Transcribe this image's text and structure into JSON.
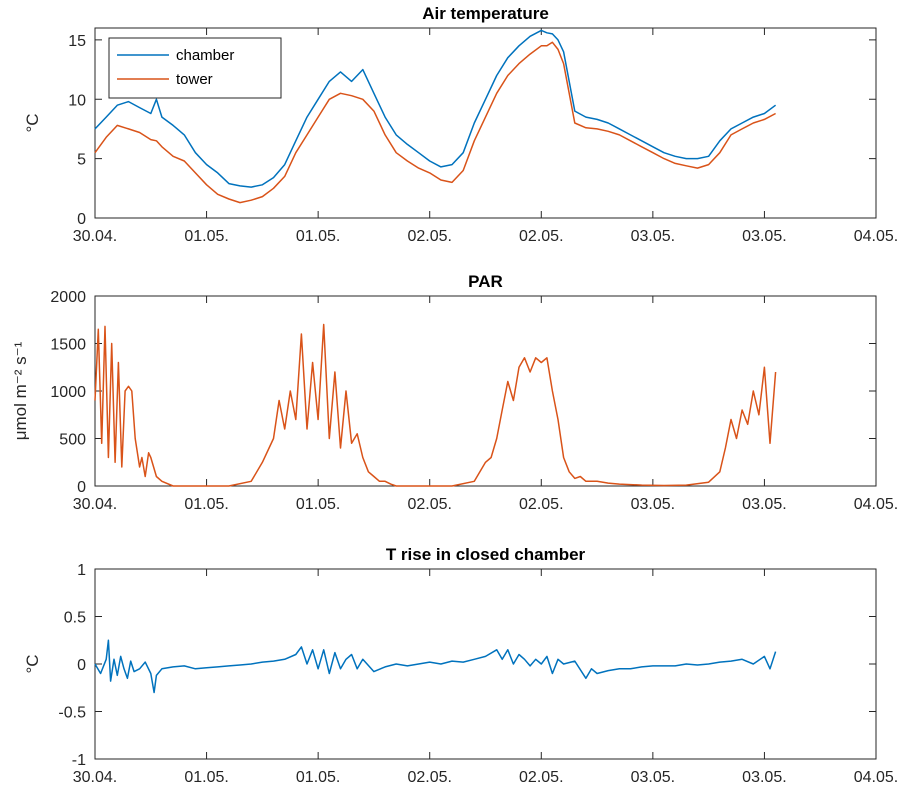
{
  "chart_data": [
    {
      "type": "line",
      "title": "Air temperature",
      "ylabel": "°C",
      "xlabel": "",
      "xlim": [
        0,
        7
      ],
      "ylim": [
        0,
        16
      ],
      "yticks": [
        0,
        5,
        10,
        15
      ],
      "x_tick_labels": [
        "30.04.",
        "01.05.",
        "01.05.",
        "02.05.",
        "02.05.",
        "03.05.",
        "03.05.",
        "04.05."
      ],
      "legend_position": "top-left",
      "grid": false,
      "series": [
        {
          "name": "chamber",
          "color": "#0072BD",
          "x": [
            0,
            0.1,
            0.2,
            0.3,
            0.4,
            0.5,
            0.55,
            0.6,
            0.7,
            0.8,
            0.9,
            1.0,
            1.1,
            1.2,
            1.3,
            1.4,
            1.5,
            1.6,
            1.7,
            1.8,
            1.9,
            2.0,
            2.1,
            2.2,
            2.3,
            2.4,
            2.5,
            2.6,
            2.7,
            2.8,
            2.9,
            3.0,
            3.1,
            3.2,
            3.3,
            3.4,
            3.5,
            3.6,
            3.7,
            3.8,
            3.9,
            4.0,
            4.05,
            4.1,
            4.15,
            4.2,
            4.3,
            4.4,
            4.5,
            4.6,
            4.7,
            4.8,
            4.9,
            5.0,
            5.1,
            5.2,
            5.3,
            5.4,
            5.5,
            5.6,
            5.7,
            5.8,
            5.9,
            6.0,
            6.1
          ],
          "values": [
            7.5,
            8.5,
            9.5,
            9.8,
            9.3,
            8.8,
            10.0,
            8.5,
            7.8,
            7.0,
            5.5,
            4.5,
            3.8,
            2.9,
            2.7,
            2.6,
            2.8,
            3.4,
            4.5,
            6.5,
            8.5,
            10.0,
            11.5,
            12.3,
            11.5,
            12.5,
            10.5,
            8.5,
            7.0,
            6.2,
            5.5,
            4.8,
            4.3,
            4.5,
            5.5,
            8.0,
            10.0,
            12.0,
            13.5,
            14.5,
            15.3,
            15.8,
            15.6,
            15.5,
            15.0,
            14.0,
            9.0,
            8.5,
            8.3,
            8.0,
            7.5,
            7.0,
            6.5,
            6.0,
            5.5,
            5.2,
            5.0,
            5.0,
            5.2,
            6.5,
            7.5,
            8.0,
            8.5,
            8.8,
            9.5
          ]
        },
        {
          "name": "tower",
          "color": "#D95319",
          "x": [
            0,
            0.1,
            0.2,
            0.3,
            0.4,
            0.5,
            0.55,
            0.6,
            0.7,
            0.8,
            0.9,
            1.0,
            1.1,
            1.2,
            1.3,
            1.4,
            1.5,
            1.6,
            1.7,
            1.8,
            1.9,
            2.0,
            2.1,
            2.2,
            2.3,
            2.4,
            2.5,
            2.6,
            2.7,
            2.8,
            2.9,
            3.0,
            3.1,
            3.2,
            3.3,
            3.4,
            3.5,
            3.6,
            3.7,
            3.8,
            3.9,
            4.0,
            4.05,
            4.1,
            4.15,
            4.2,
            4.3,
            4.4,
            4.5,
            4.6,
            4.7,
            4.8,
            4.9,
            5.0,
            5.1,
            5.2,
            5.3,
            5.4,
            5.5,
            5.6,
            5.7,
            5.8,
            5.9,
            6.0,
            6.1
          ],
          "values": [
            5.5,
            6.8,
            7.8,
            7.5,
            7.2,
            6.6,
            6.5,
            6.0,
            5.2,
            4.8,
            3.8,
            2.8,
            2.0,
            1.6,
            1.3,
            1.5,
            1.8,
            2.5,
            3.5,
            5.5,
            7.0,
            8.5,
            10.0,
            10.5,
            10.3,
            10.0,
            9.0,
            7.0,
            5.5,
            4.8,
            4.2,
            3.8,
            3.2,
            3.0,
            4.0,
            6.5,
            8.5,
            10.5,
            12.0,
            13.0,
            13.8,
            14.5,
            14.5,
            14.8,
            14.2,
            13.0,
            8.0,
            7.6,
            7.5,
            7.3,
            7.0,
            6.5,
            6.0,
            5.5,
            5.0,
            4.6,
            4.4,
            4.2,
            4.5,
            5.5,
            7.0,
            7.5,
            8.0,
            8.3,
            8.8
          ]
        }
      ]
    },
    {
      "type": "line",
      "title": "PAR",
      "ylabel": "μmol m⁻² s⁻¹",
      "xlabel": "",
      "xlim": [
        0,
        7
      ],
      "ylim": [
        0,
        2000
      ],
      "yticks": [
        0,
        500,
        1000,
        1500,
        2000
      ],
      "x_tick_labels": [
        "30.04.",
        "01.05.",
        "01.05.",
        "02.05.",
        "02.05.",
        "03.05.",
        "03.05.",
        "04.05."
      ],
      "grid": false,
      "series": [
        {
          "name": "",
          "color": "#D95319",
          "x": [
            0,
            0.03,
            0.06,
            0.09,
            0.12,
            0.15,
            0.18,
            0.21,
            0.24,
            0.27,
            0.3,
            0.33,
            0.36,
            0.4,
            0.42,
            0.45,
            0.48,
            0.5,
            0.55,
            0.6,
            0.7,
            0.8,
            1.0,
            1.2,
            1.4,
            1.5,
            1.6,
            1.65,
            1.7,
            1.75,
            1.8,
            1.85,
            1.9,
            1.95,
            2.0,
            2.05,
            2.1,
            2.15,
            2.2,
            2.25,
            2.3,
            2.35,
            2.4,
            2.45,
            2.5,
            2.55,
            2.6,
            2.65,
            2.7,
            2.8,
            3.0,
            3.2,
            3.4,
            3.5,
            3.55,
            3.6,
            3.65,
            3.7,
            3.75,
            3.8,
            3.85,
            3.9,
            3.95,
            4.0,
            4.05,
            4.1,
            4.15,
            4.2,
            4.25,
            4.3,
            4.35,
            4.4,
            4.5,
            4.6,
            4.7,
            4.9,
            5.1,
            5.3,
            5.5,
            5.6,
            5.65,
            5.7,
            5.75,
            5.8,
            5.85,
            5.9,
            5.95,
            6.0,
            6.05,
            6.1
          ],
          "values": [
            900,
            1650,
            450,
            1680,
            300,
            1500,
            250,
            1300,
            200,
            1000,
            1050,
            1000,
            500,
            200,
            300,
            100,
            350,
            300,
            100,
            50,
            0,
            0,
            0,
            0,
            50,
            250,
            500,
            900,
            600,
            1000,
            700,
            1600,
            600,
            1300,
            700,
            1700,
            500,
            1200,
            400,
            1000,
            450,
            550,
            300,
            150,
            100,
            50,
            50,
            20,
            0,
            0,
            0,
            0,
            50,
            250,
            300,
            500,
            800,
            1100,
            900,
            1250,
            1350,
            1200,
            1350,
            1300,
            1350,
            1000,
            700,
            300,
            150,
            80,
            100,
            50,
            50,
            30,
            20,
            10,
            5,
            10,
            40,
            150,
            400,
            700,
            500,
            800,
            650,
            1000,
            750,
            1250,
            450,
            1200
          ]
        }
      ]
    },
    {
      "type": "line",
      "title": "T rise in closed chamber",
      "ylabel": "°C",
      "xlabel": "",
      "xlim": [
        0,
        7
      ],
      "ylim": [
        -1,
        1
      ],
      "yticks": [
        -1,
        -0.5,
        0,
        0.5,
        1
      ],
      "x_tick_labels": [
        "30.04.",
        "01.05.",
        "01.05.",
        "02.05.",
        "02.05.",
        "03.05.",
        "03.05.",
        "04.05."
      ],
      "grid": false,
      "series": [
        {
          "name": "",
          "color": "#0072BD",
          "x": [
            0,
            0.05,
            0.1,
            0.12,
            0.14,
            0.17,
            0.2,
            0.23,
            0.26,
            0.29,
            0.32,
            0.35,
            0.4,
            0.45,
            0.5,
            0.53,
            0.55,
            0.6,
            0.7,
            0.8,
            0.9,
            1.0,
            1.1,
            1.2,
            1.3,
            1.4,
            1.5,
            1.6,
            1.7,
            1.8,
            1.85,
            1.9,
            1.95,
            2.0,
            2.05,
            2.1,
            2.15,
            2.2,
            2.25,
            2.3,
            2.35,
            2.4,
            2.5,
            2.6,
            2.7,
            2.8,
            2.9,
            3.0,
            3.1,
            3.2,
            3.3,
            3.4,
            3.5,
            3.6,
            3.65,
            3.7,
            3.75,
            3.8,
            3.85,
            3.9,
            3.95,
            4.0,
            4.05,
            4.1,
            4.15,
            4.2,
            4.3,
            4.4,
            4.45,
            4.5,
            4.6,
            4.7,
            4.8,
            4.9,
            5.0,
            5.1,
            5.2,
            5.3,
            5.4,
            5.5,
            5.6,
            5.7,
            5.8,
            5.9,
            6.0,
            6.05,
            6.1
          ],
          "values": [
            0.0,
            -0.1,
            0.05,
            0.25,
            -0.18,
            0.05,
            -0.12,
            0.08,
            -0.05,
            -0.15,
            0.03,
            -0.08,
            -0.05,
            0.02,
            -0.1,
            -0.3,
            -0.12,
            -0.05,
            -0.03,
            -0.02,
            -0.05,
            -0.04,
            -0.03,
            -0.02,
            -0.01,
            0.0,
            0.02,
            0.03,
            0.05,
            0.1,
            0.18,
            0.0,
            0.15,
            -0.05,
            0.15,
            -0.1,
            0.12,
            -0.05,
            0.05,
            0.1,
            -0.05,
            0.05,
            -0.08,
            -0.03,
            0.0,
            -0.02,
            0.0,
            0.02,
            0.0,
            0.03,
            0.02,
            0.05,
            0.08,
            0.15,
            0.05,
            0.15,
            0.0,
            0.1,
            0.05,
            -0.02,
            0.05,
            0.0,
            0.08,
            -0.1,
            0.05,
            0.0,
            0.03,
            -0.15,
            -0.05,
            -0.1,
            -0.07,
            -0.05,
            -0.05,
            -0.03,
            -0.02,
            -0.02,
            -0.02,
            0.0,
            -0.01,
            0.0,
            0.02,
            0.03,
            0.05,
            0.0,
            0.08,
            -0.05,
            0.13
          ]
        }
      ]
    }
  ]
}
